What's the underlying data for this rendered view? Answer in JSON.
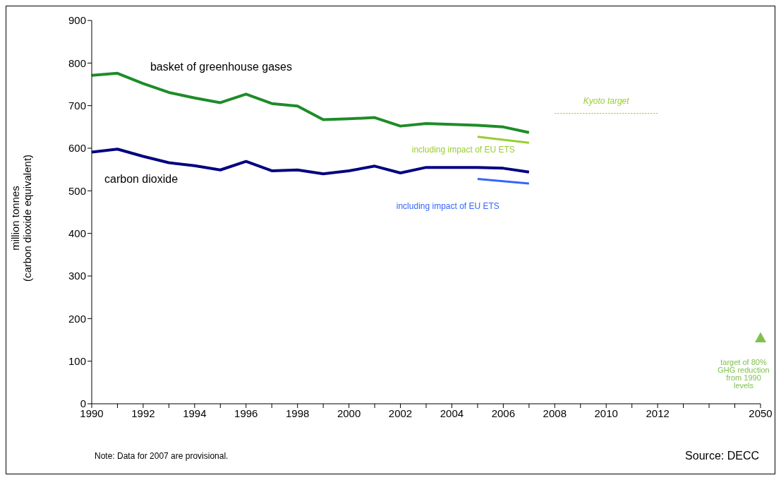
{
  "chart_data": {
    "type": "line",
    "ylabel": "million tonnes\n(carbon dioxide equivalent)",
    "categories": [
      "1990",
      null,
      "1992",
      null,
      "1994",
      null,
      "1996",
      null,
      "1998",
      null,
      "2000",
      null,
      "2002",
      null,
      "2004",
      null,
      "2006",
      null,
      "2008",
      null,
      "2010",
      null,
      "2012",
      null,
      null,
      null,
      "2050"
    ],
    "series": [
      {
        "name": "basket of greenhouse gases",
        "color": "#1e8c28",
        "values": [
          771,
          776,
          752,
          731,
          718,
          707,
          727,
          705,
          699,
          667,
          669,
          672,
          652,
          658,
          656,
          654,
          650,
          637,
          null,
          null,
          null,
          null,
          null,
          null,
          null,
          null,
          null
        ]
      },
      {
        "name": "carbon dioxide",
        "color": "#000080",
        "values": [
          591,
          598,
          581,
          566,
          559,
          549,
          569,
          547,
          549,
          540,
          547,
          558,
          542,
          555,
          555,
          555,
          553,
          544,
          null,
          null,
          null,
          null,
          null,
          null,
          null,
          null,
          null
        ]
      },
      {
        "name": "including impact of EU ETS",
        "color": "#99cc33",
        "values": [
          null,
          null,
          null,
          null,
          null,
          null,
          null,
          null,
          null,
          null,
          null,
          null,
          null,
          null,
          null,
          627,
          null,
          613,
          null,
          null,
          null,
          null,
          null,
          null,
          null,
          null,
          null
        ]
      },
      {
        "name": "including impact of EU ETS",
        "color": "#3366ff",
        "values": [
          null,
          null,
          null,
          null,
          null,
          null,
          null,
          null,
          null,
          null,
          null,
          null,
          null,
          null,
          null,
          528,
          null,
          517,
          null,
          null,
          null,
          null,
          null,
          null,
          null,
          null,
          null
        ]
      },
      {
        "name": "Kyoto target",
        "color": "#99cc33",
        "line_style": "dotted",
        "values": [
          null,
          null,
          null,
          null,
          null,
          null,
          null,
          null,
          null,
          null,
          null,
          null,
          null,
          null,
          null,
          null,
          null,
          null,
          682,
          682,
          682,
          682,
          682,
          null,
          null,
          null,
          null
        ]
      },
      {
        "name": "target of 80% GHG reduction from 1990 levels",
        "type": "scatter",
        "marker": "triangle",
        "color": "#80c050",
        "values": [
          null,
          null,
          null,
          null,
          null,
          null,
          null,
          null,
          null,
          null,
          null,
          null,
          null,
          null,
          null,
          null,
          null,
          null,
          null,
          null,
          null,
          null,
          null,
          null,
          null,
          null,
          155
        ]
      }
    ],
    "ylim": [
      0,
      900
    ],
    "yticks": [
      0,
      100,
      200,
      300,
      400,
      500,
      600,
      700,
      800,
      900
    ],
    "grid": false,
    "legend": false,
    "marker": "none",
    "annotations": [
      "Note: Data for 2007 are provisional.",
      "Source: DECC"
    ]
  }
}
